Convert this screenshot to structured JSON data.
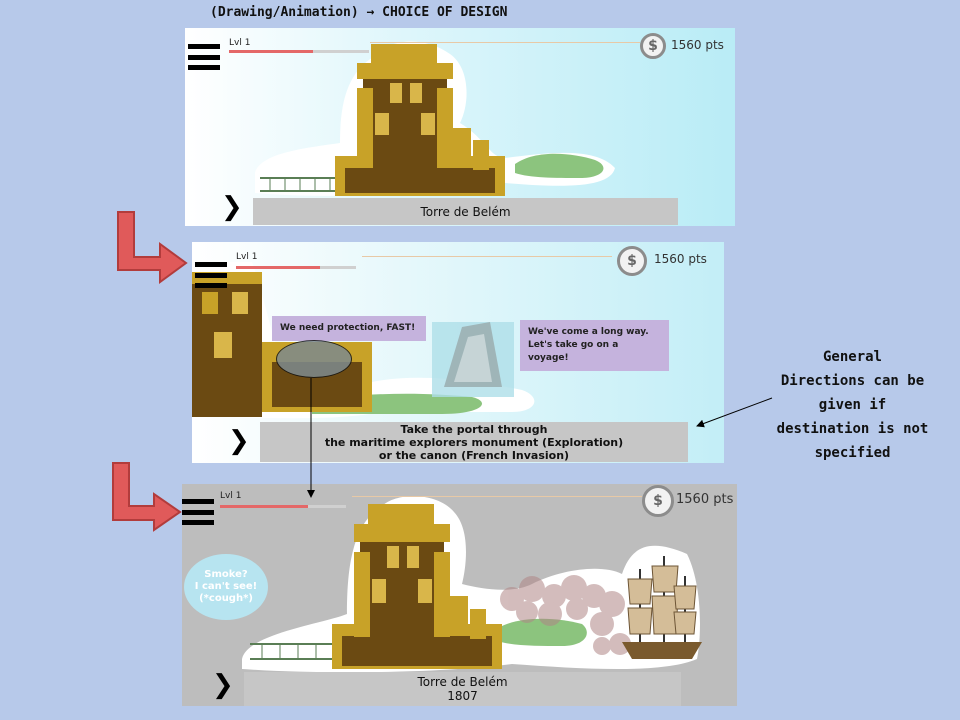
{
  "slide": {
    "title": "(Drawing/Animation) → CHOICE OF DESIGN",
    "note": [
      "General",
      "Directions can be",
      "given if",
      "destination is not",
      "specified"
    ]
  },
  "colors": {
    "background": "#b7c9ea",
    "progress_fill": "#e46868",
    "bubble": "#c5b3dd",
    "arrow_red": "#e05a5a",
    "speech": "#b7e4f0",
    "caption_bar": "#c6c6c6"
  },
  "icons": {
    "menu": "hamburger-icon",
    "coin": "dollar-coin-icon",
    "next": "chevron-right-icon"
  },
  "screens": [
    {
      "level": "Lvl 1",
      "level_progress": 0.6,
      "coin_symbol": "$",
      "points": "1560 pts",
      "caption": [
        "Torre de Belém"
      ]
    },
    {
      "level": "Lvl 1",
      "level_progress": 0.7,
      "coin_symbol": "$",
      "points": "1560 pts",
      "bubble_left": "We need protection, FAST!",
      "bubble_right": [
        "We've come a long way.",
        "Let's take go on a voyage!"
      ],
      "caption": [
        "Take the portal through",
        "the maritime explorers monument (Exploration)",
        "or the canon (French Invasion)"
      ]
    },
    {
      "level": "Lvl 1",
      "level_progress": 0.7,
      "coin_symbol": "$",
      "points": "1560 pts",
      "speech": [
        "Smoke?",
        "I can't see!",
        "(*cough*)"
      ],
      "caption": [
        "Torre de Belém",
        "1807"
      ]
    }
  ]
}
